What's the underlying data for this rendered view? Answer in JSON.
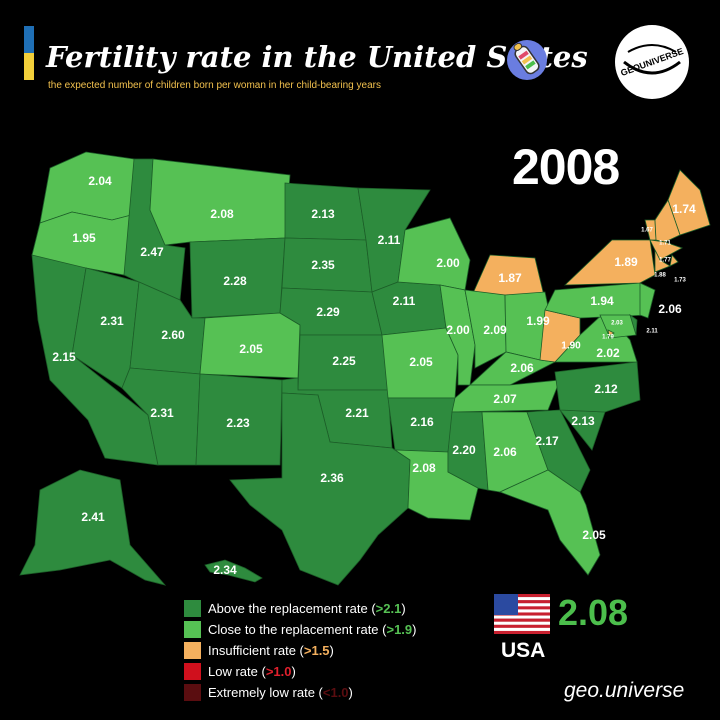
{
  "header": {
    "title": "Fertility rate in the United States",
    "subtitle": "the expected number of children born per woman in her child-bearing years",
    "brand": "GEOUNIVERSE"
  },
  "year": "2008",
  "colors": {
    "above": "#2e8b3e",
    "close": "#56c154",
    "insufficient": "#f4b05e",
    "low": "#d0101d",
    "extreme": "#5a0d10"
  },
  "legend": [
    {
      "label": "Above the replacement rate (",
      "threshold": ">2.1",
      "end": ")",
      "color": "#2e8b3e",
      "thresholdColor": "#56c154"
    },
    {
      "label": "Close to the replacement rate (",
      "threshold": ">1.9",
      "end": ")",
      "color": "#56c154",
      "thresholdColor": "#56c154"
    },
    {
      "label": "Insufficient rate (",
      "threshold": ">1.5",
      "end": ")",
      "color": "#f4b05e",
      "thresholdColor": "#f4b05e"
    },
    {
      "label": "Low rate (",
      "threshold": ">1.0",
      "end": ")",
      "color": "#d0101d",
      "thresholdColor": "#e0202d"
    },
    {
      "label": "Extremely low rate (",
      "threshold": "<1.0",
      "end": ")",
      "color": "#5a0d10",
      "thresholdColor": "#5a0d10"
    }
  ],
  "national": {
    "label": "USA",
    "value": "2.08"
  },
  "credit": "geo.universe",
  "state_rates": {
    "WA": "2.04",
    "OR": "1.95",
    "CA": "2.15",
    "NV": "2.31",
    "ID": "2.47",
    "MT": "2.08",
    "WY": "2.28",
    "UT": "2.60",
    "AZ": "2.31",
    "CO": "2.05",
    "NM": "2.23",
    "ND": "2.13",
    "SD": "2.35",
    "NE": "2.29",
    "KS": "2.25",
    "OK": "2.21",
    "TX": "2.36",
    "MN": "2.11",
    "IA": "2.11",
    "MO": "2.05",
    "AR": "2.16",
    "LA": "2.08",
    "WI": "2.00",
    "IL": "2.00",
    "MI": "1.87",
    "IN": "2.09",
    "OH": "1.99",
    "KY": "2.06",
    "TN": "2.07",
    "MS": "2.20",
    "AL": "2.06",
    "GA": "2.17",
    "FL": "2.05",
    "SC": "2.13",
    "NC": "2.12",
    "VA": "2.02",
    "WV": "1.90",
    "PA": "1.94",
    "NY": "1.89",
    "ME": "1.74",
    "VT": "1.67",
    "NH": "1.71",
    "MA": "1.77",
    "RI": "1.88",
    "CT": "1.73",
    "NJ": "2.06",
    "DE": "2.11",
    "MD": "2.03",
    "DC": "1.79",
    "AK": "2.41",
    "HI": "2.34"
  }
}
